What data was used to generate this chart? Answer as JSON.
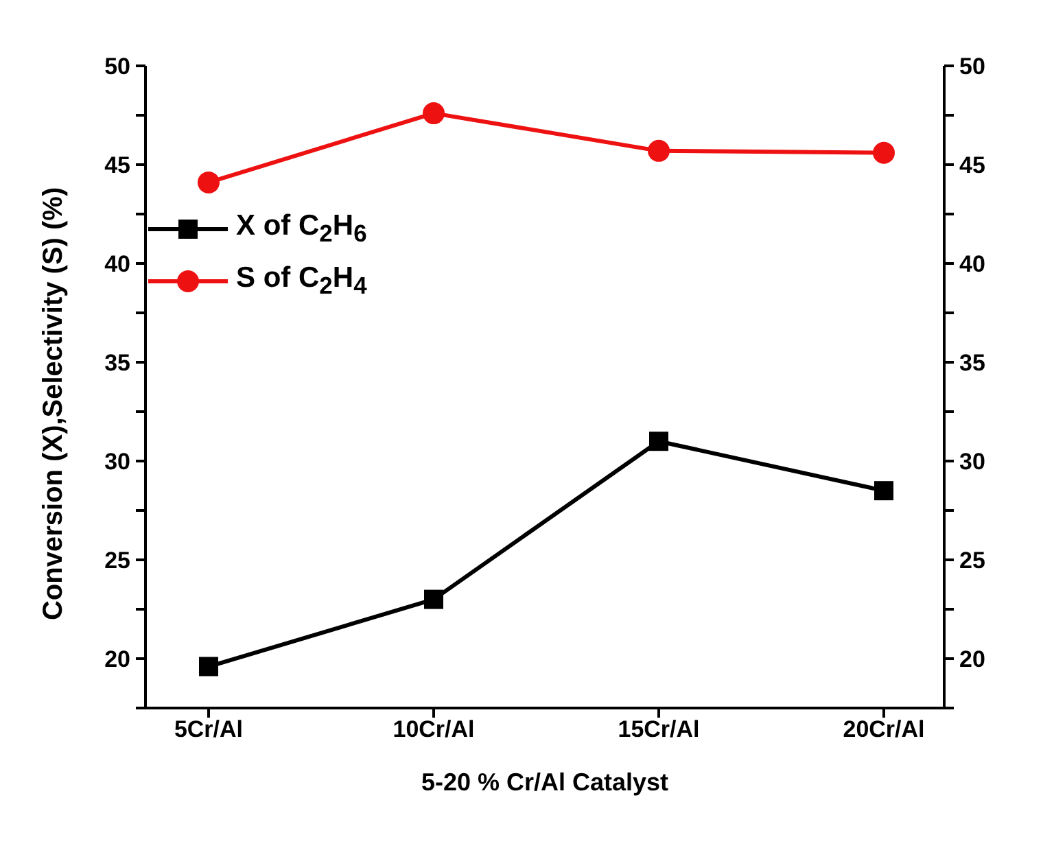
{
  "chart_data": {
    "type": "line",
    "xlabel": "5-20 % Cr/Al Catalyst",
    "ylabel": "Conversion (X),Selectivity (S) (%)",
    "categories": [
      "5Cr/Al",
      "10Cr/Al",
      "15Cr/Al",
      "20Cr/Al"
    ],
    "series": [
      {
        "name": "X of C$_{2}$H$_{6}$",
        "color": "#000000",
        "marker": "square",
        "values": [
          19.6,
          23.0,
          31.0,
          28.5
        ]
      },
      {
        "name": "S of C$_{2}$H$_{4}$",
        "color": "#ee1111",
        "marker": "circle",
        "values": [
          44.1,
          47.6,
          45.7,
          45.6
        ]
      }
    ],
    "ylim": [
      17.5,
      50
    ],
    "yticks": [
      {
        "value": 17.5,
        "label": null
      },
      20,
      {
        "value": 22.5,
        "label": null
      },
      25,
      {
        "value": 27.5,
        "label": null
      },
      30,
      {
        "value": 32.5,
        "label": null
      },
      35,
      {
        "value": 37.5,
        "label": null
      },
      40,
      {
        "value": 42.5,
        "label": null
      },
      45,
      {
        "value": 47.5,
        "label": null
      },
      50
    ],
    "y2lim": [
      17.5,
      50
    ],
    "y2ticks": [
      {
        "value": 17.5,
        "label": null
      },
      20,
      {
        "value": 22.5,
        "label": null
      },
      25,
      {
        "value": 27.5,
        "label": null
      },
      30,
      {
        "value": 32.5,
        "label": null
      },
      35,
      {
        "value": 37.5,
        "label": null
      },
      40,
      {
        "value": 42.5,
        "label": null
      },
      45,
      {
        "value": 47.5,
        "label": null
      },
      50
    ],
    "grid": false,
    "legend": "top left",
    "line_style": "solid"
  }
}
